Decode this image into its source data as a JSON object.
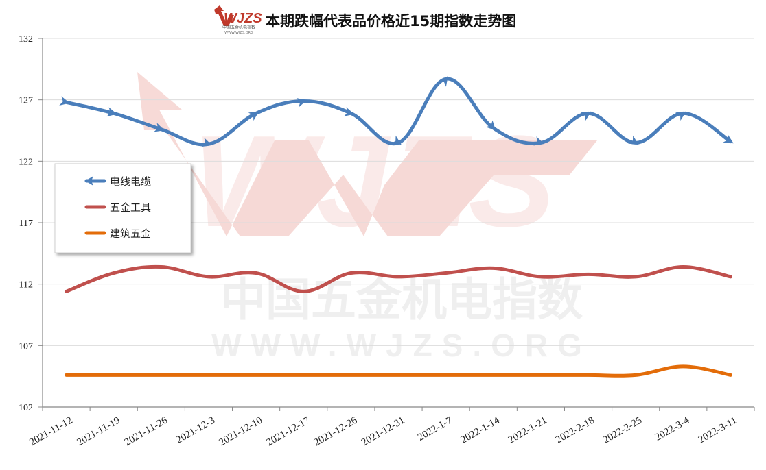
{
  "header": {
    "logo_text": "WJZS",
    "logo_subtext": "中国五金机电指数",
    "logo_url": "WWW.WJZS.ORG",
    "title": "本期跌幅代表品价格近15期指数走势图"
  },
  "watermark": {
    "brand": "WJZS",
    "cn": "中国五金机电指数",
    "url": "WWW.WJZS.ORG",
    "color": "#e8a79f"
  },
  "chart_data": {
    "type": "line",
    "title": "本期跌幅代表品价格近15期指数走势图",
    "xlabel": "",
    "ylabel": "",
    "ylim": [
      102,
      132
    ],
    "yticks": [
      102,
      107,
      112,
      117,
      122,
      127,
      132
    ],
    "grid": true,
    "legend_position": "left-middle",
    "categories": [
      "2021-11-12",
      "2021-11-19",
      "2021-11-26",
      "2021-12-3",
      "2021-12-10",
      "2021-12-17",
      "2021-12-26",
      "2021-12-31",
      "2022-1-7",
      "2022-1-14",
      "2022-1-21",
      "2022-2-18",
      "2022-2-25",
      "2022-3-4",
      "2022-3-11"
    ],
    "series": [
      {
        "name": "电线电缆",
        "color": "#4a7ebb",
        "values": [
          126.8,
          125.9,
          124.6,
          123.4,
          125.9,
          126.9,
          125.9,
          123.5,
          128.7,
          124.7,
          123.5,
          125.9,
          123.5,
          125.9,
          123.6
        ]
      },
      {
        "name": "五金工具",
        "color": "#c0504d",
        "values": [
          111.4,
          112.9,
          113.4,
          112.6,
          112.9,
          111.4,
          112.9,
          112.6,
          112.9,
          113.3,
          112.6,
          112.8,
          112.6,
          113.4,
          112.6
        ]
      },
      {
        "name": "建筑五金",
        "color": "#e36c09",
        "values": [
          104.6,
          104.6,
          104.6,
          104.6,
          104.6,
          104.6,
          104.6,
          104.6,
          104.6,
          104.6,
          104.6,
          104.6,
          104.6,
          105.3,
          104.6
        ]
      }
    ]
  }
}
